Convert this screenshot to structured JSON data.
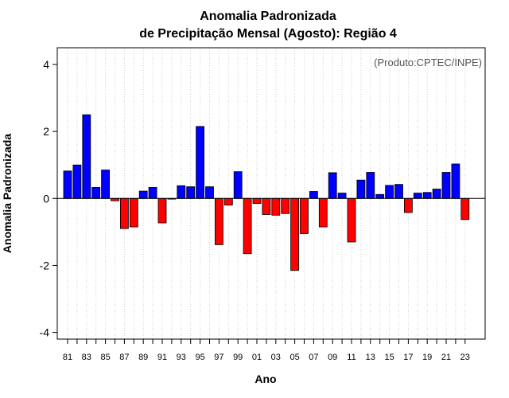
{
  "chart_data": {
    "type": "bar",
    "title_lines": [
      "Anomalia Padronizada",
      "de Precipitação Mensal (Agosto): Região 4"
    ],
    "xlabel": "Ano",
    "ylabel": "Anomalia Padronizada",
    "annotation": "(Produto:CPTEC/INPE)",
    "ylim": [
      -4.2,
      4.5
    ],
    "yticks": [
      -4,
      -2,
      0,
      2,
      4
    ],
    "ytick_labels": [
      "-4",
      "-2",
      "0",
      "2",
      "4"
    ],
    "grid": true,
    "positive_color": "#0000ff",
    "negative_color": "#ff0000",
    "categories": [
      "81",
      "82",
      "83",
      "84",
      "85",
      "86",
      "87",
      "88",
      "89",
      "90",
      "91",
      "92",
      "93",
      "94",
      "95",
      "96",
      "97",
      "98",
      "99",
      "00",
      "01",
      "02",
      "03",
      "04",
      "05",
      "06",
      "07",
      "08",
      "09",
      "10",
      "11",
      "12",
      "13",
      "14",
      "15",
      "16",
      "17",
      "18",
      "19",
      "20",
      "21",
      "22",
      "23"
    ],
    "tick_labels": [
      "81",
      "83",
      "85",
      "87",
      "89",
      "91",
      "93",
      "95",
      "97",
      "99",
      "01",
      "03",
      "05",
      "07",
      "09",
      "11",
      "13",
      "15",
      "17",
      "19",
      "21",
      "23"
    ],
    "values": [
      0.82,
      1.0,
      2.5,
      0.33,
      0.85,
      -0.07,
      -0.9,
      -0.85,
      0.22,
      0.33,
      -0.73,
      -0.02,
      0.38,
      0.35,
      2.15,
      0.35,
      -1.38,
      -0.2,
      0.8,
      -1.65,
      -0.15,
      -0.48,
      -0.5,
      -0.45,
      -2.15,
      -1.05,
      0.21,
      -0.85,
      0.77,
      0.16,
      -1.3,
      0.55,
      0.78,
      0.12,
      0.39,
      0.42,
      -0.42,
      0.16,
      0.18,
      0.28,
      0.78,
      1.03,
      -0.63
    ]
  }
}
